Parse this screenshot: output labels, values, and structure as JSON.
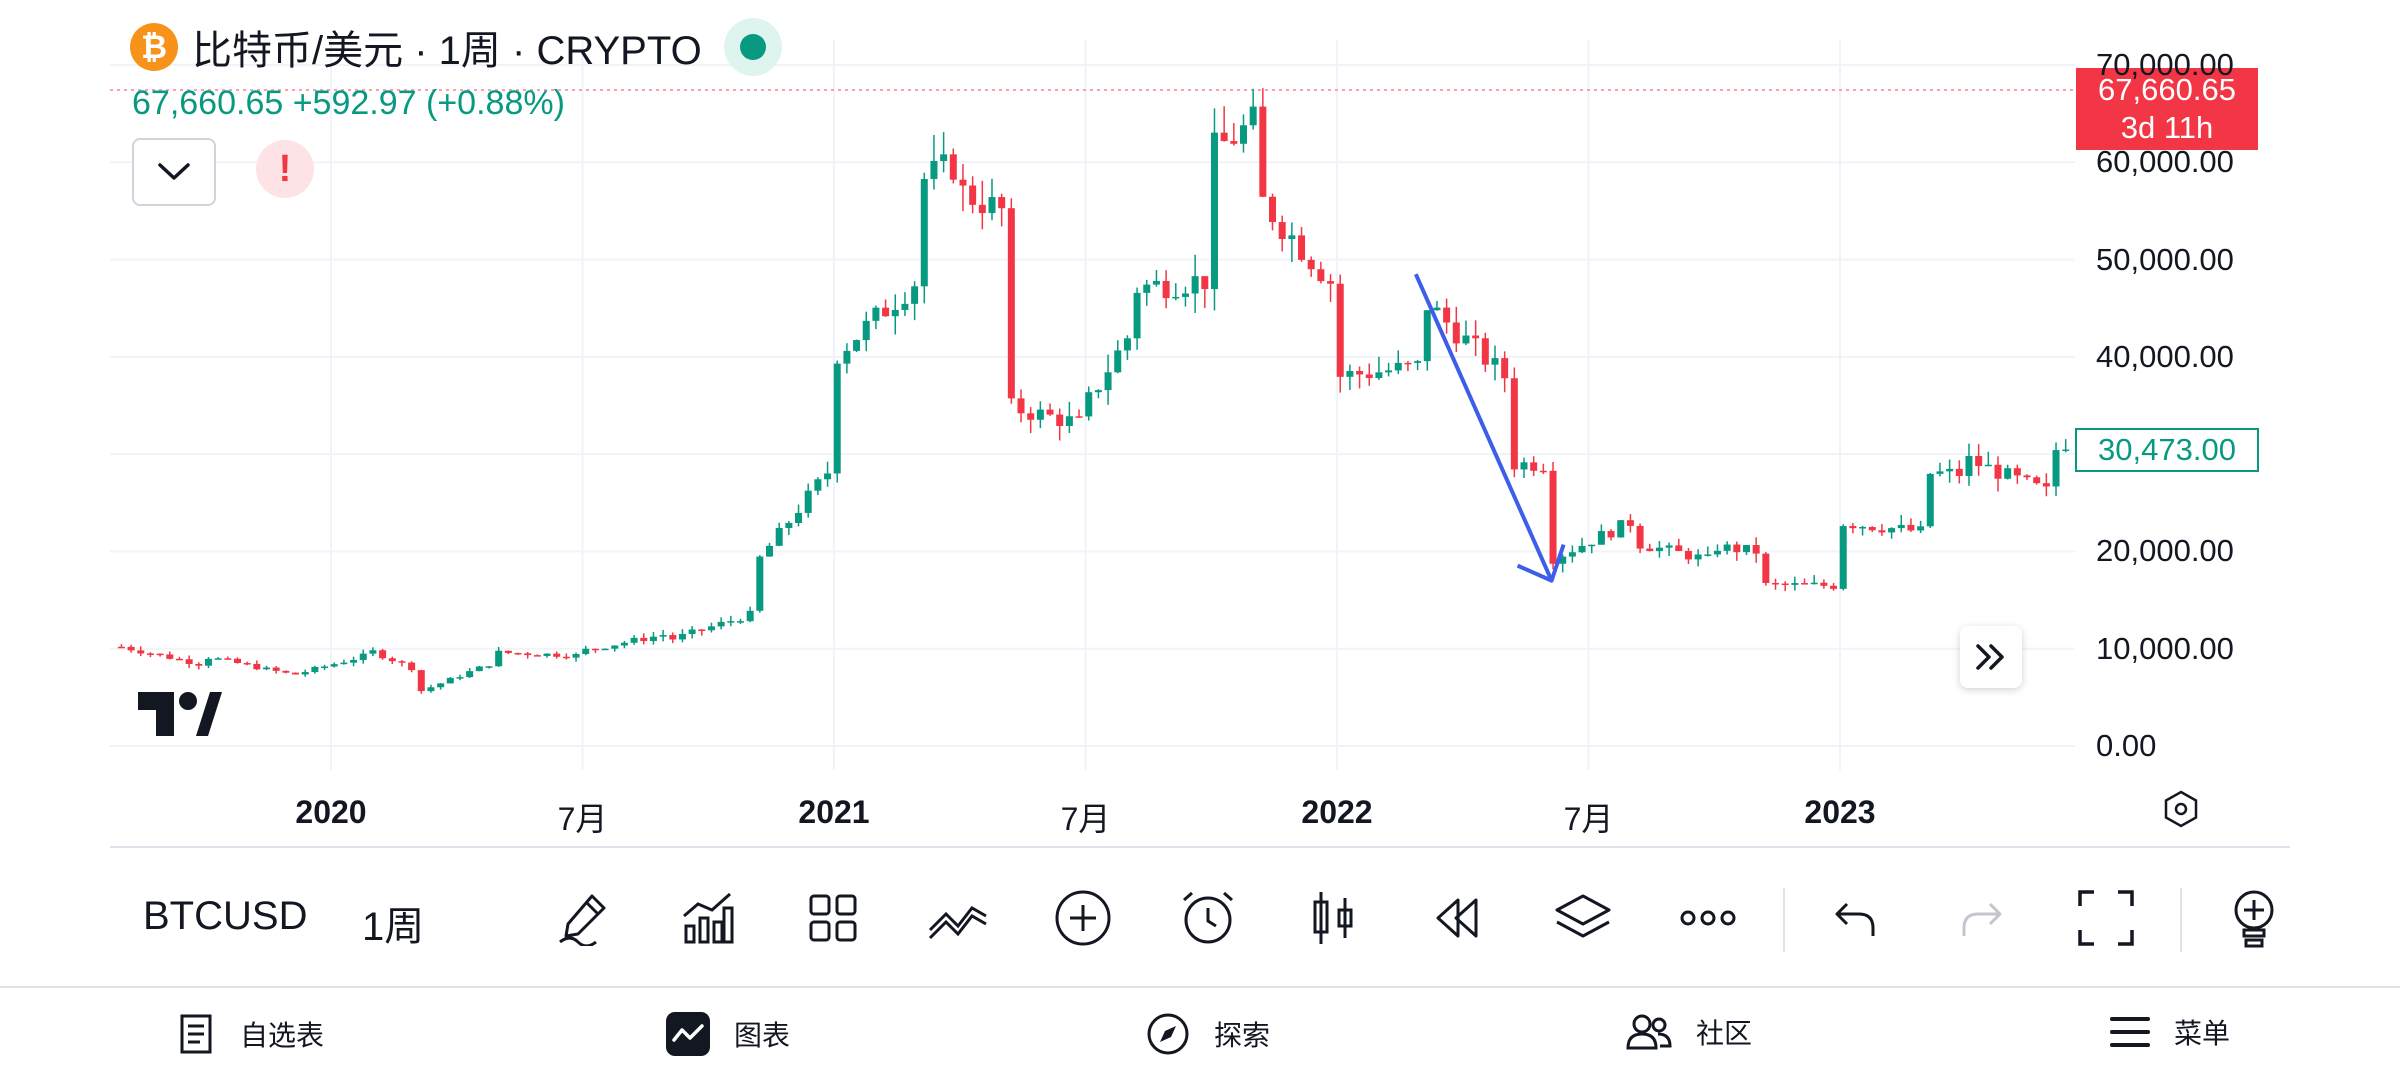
{
  "header": {
    "symbol_title": "比特币/美元 · 1周 · CRYPTO",
    "coin_glyph": "₿",
    "price_change": "67,660.65  +592.97 (+0.88%)",
    "alert_glyph": "!"
  },
  "price_scale": {
    "labels": [
      "70,000.00",
      "60,000.00",
      "50,000.00",
      "40,000.00",
      "20,000.00",
      "10,000.00",
      "0.00"
    ],
    "current_price": "67,660.65",
    "countdown": "3d 11h",
    "marker_price": "30,473.00"
  },
  "time_scale": {
    "labels": [
      {
        "text": "2020",
        "bold": true
      },
      {
        "text": "7月",
        "bold": false
      },
      {
        "text": "2021",
        "bold": true
      },
      {
        "text": "7月",
        "bold": false
      },
      {
        "text": "2022",
        "bold": true
      },
      {
        "text": "7月",
        "bold": false
      },
      {
        "text": "2023",
        "bold": true
      }
    ]
  },
  "colors": {
    "up": "#089981",
    "down": "#f23645",
    "drawing_arrow": "#3d5ee8",
    "grid": "#f0f3fa"
  },
  "chart_data": {
    "type": "candlestick",
    "interval": "1周",
    "ylim": [
      0,
      70000
    ],
    "x_range": [
      "2019-08",
      "2023-07"
    ],
    "grid": true,
    "candles_approx": [
      {
        "date": "2019-08",
        "open": 11000,
        "close": 10200
      },
      {
        "date": "2019-10",
        "open": 8300,
        "close": 9200
      },
      {
        "date": "2019-12",
        "open": 7400,
        "close": 7200
      },
      {
        "date": "2020-02",
        "open": 9500,
        "close": 9700
      },
      {
        "date": "2020-03",
        "open": 7900,
        "close": 5400
      },
      {
        "date": "2020-05",
        "open": 8800,
        "close": 9600
      },
      {
        "date": "2020-07",
        "open": 9300,
        "close": 9800
      },
      {
        "date": "2020-09",
        "open": 11500,
        "close": 10800
      },
      {
        "date": "2020-11",
        "open": 13500,
        "close": 18000
      },
      {
        "date": "2021-01",
        "open": 29000,
        "close": 40000
      },
      {
        "date": "2021-03",
        "open": 48000,
        "close": 58000
      },
      {
        "date": "2021-04",
        "open": 60000,
        "close": 57000
      },
      {
        "date": "2021-05",
        "open": 55000,
        "close": 35000
      },
      {
        "date": "2021-07",
        "open": 33000,
        "close": 35000
      },
      {
        "date": "2021-08",
        "open": 42000,
        "close": 47000
      },
      {
        "date": "2021-10",
        "open": 48000,
        "close": 61000
      },
      {
        "date": "2021-11",
        "open": 64000,
        "close": 57000
      },
      {
        "date": "2022-01",
        "open": 47000,
        "close": 38000
      },
      {
        "date": "2022-03",
        "open": 39000,
        "close": 46000
      },
      {
        "date": "2022-05",
        "open": 38000,
        "close": 29000
      },
      {
        "date": "2022-06",
        "open": 29000,
        "close": 19000
      },
      {
        "date": "2022-08",
        "open": 23000,
        "close": 21000
      },
      {
        "date": "2022-10",
        "open": 19000,
        "close": 20500
      },
      {
        "date": "2022-11",
        "open": 20000,
        "close": 16500
      },
      {
        "date": "2023-01",
        "open": 16500,
        "close": 23000
      },
      {
        "date": "2023-03",
        "open": 22000,
        "close": 28000
      },
      {
        "date": "2023-04",
        "open": 28000,
        "close": 29500
      },
      {
        "date": "2023-06",
        "open": 26000,
        "close": 30473
      }
    ],
    "drawing_arrow": {
      "from": {
        "date": "2022-03",
        "price": 48500
      },
      "to": {
        "date": "2022-06",
        "price": 17000
      }
    }
  },
  "toolbar": {
    "symbol": "BTCUSD",
    "interval": "1周",
    "icons": [
      "draw-pen-icon",
      "indicators-icon",
      "layouts-grid-icon",
      "chart-type-icon",
      "add-circle-icon",
      "alarm-clock-icon",
      "candle-icon",
      "replay-icon",
      "layers-icon",
      "more-dots-icon",
      "undo-icon",
      "redo-icon",
      "fullscreen-icon",
      "idea-bulb-icon"
    ]
  },
  "bottom_nav": {
    "items": [
      {
        "label": "自选表"
      },
      {
        "label": "图表"
      },
      {
        "label": "探索"
      },
      {
        "label": "社区"
      },
      {
        "label": "菜单"
      }
    ]
  }
}
